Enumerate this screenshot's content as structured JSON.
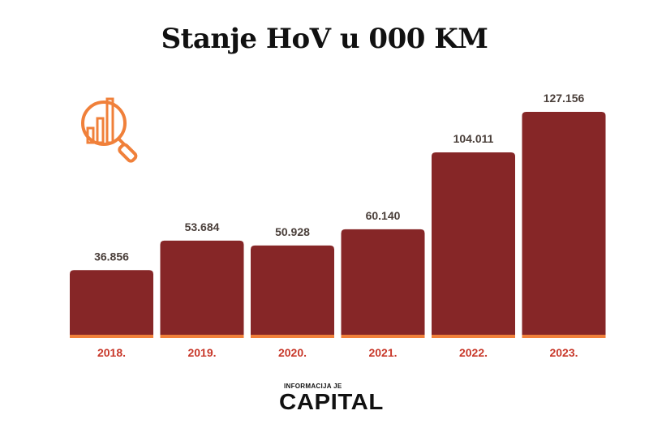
{
  "chart_data": {
    "type": "bar",
    "title": "Stanje HoV u 000 KM",
    "categories": [
      "2018.",
      "2019.",
      "2020.",
      "2021.",
      "2022.",
      "2023."
    ],
    "values": [
      36856,
      53684,
      50928,
      60140,
      104011,
      127156
    ],
    "value_labels": [
      "36.856",
      "53.684",
      "50.928",
      "60.140",
      "104.011",
      "127.156"
    ],
    "ylim": [
      0,
      127156
    ],
    "grid": false,
    "colors": {
      "bar": "#862627",
      "baseline": "#f0803a",
      "category_label": "#c8382a",
      "value_label": "#4a3f3a"
    }
  },
  "branding": {
    "tagline": "INFORMACIJA JE",
    "name": "CAPITAL"
  },
  "icons": {
    "decoration": "chart-magnifier-icon"
  }
}
